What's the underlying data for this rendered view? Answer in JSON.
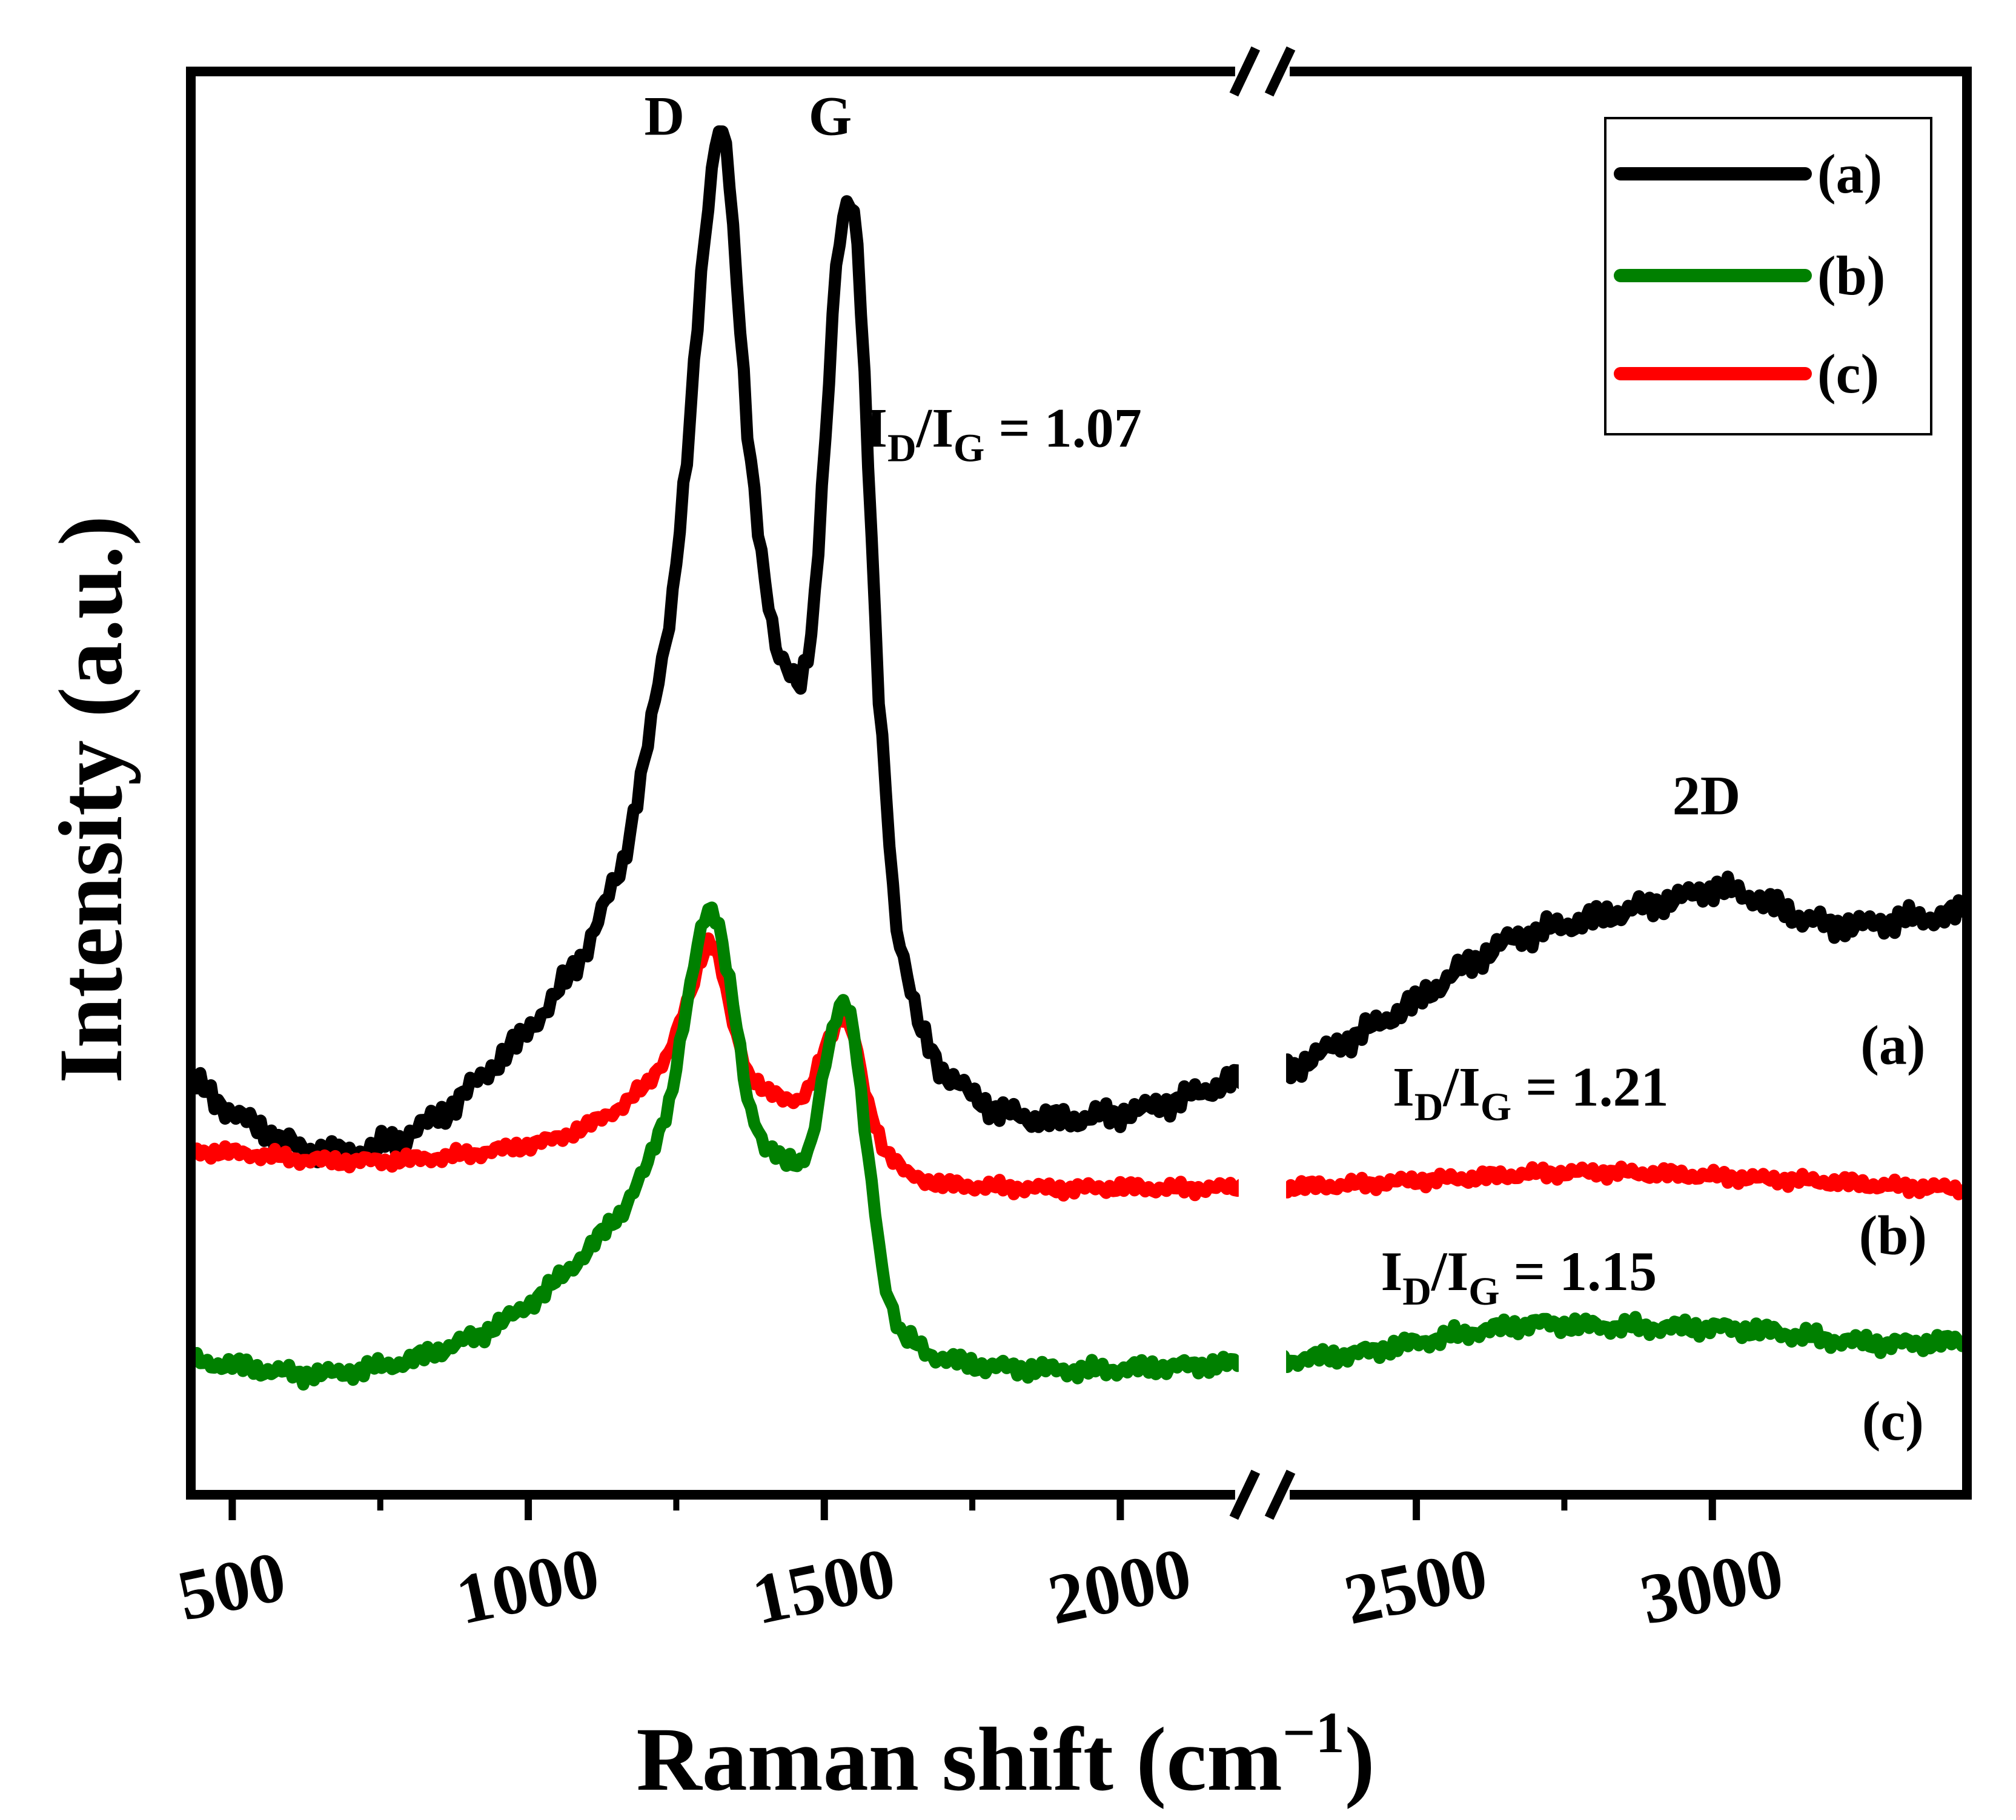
{
  "chart_data": {
    "type": "line",
    "xlabel": "Raman shift (cm",
    "xlabel_sup": "−1",
    "xlabel_close": ")",
    "ylabel": "Intensity (a.u.)",
    "xlim": [
      430,
      3430
    ],
    "axis_break": [
      2200,
      2280
    ],
    "x_ticks": [
      {
        "value": 500,
        "label": "500"
      },
      {
        "value": 1000,
        "label": "1000"
      },
      {
        "value": 1500,
        "label": "1500"
      },
      {
        "value": 2000,
        "label": "2000"
      },
      {
        "value": 2500,
        "label": "2500"
      },
      {
        "value": 3000,
        "label": "3000"
      }
    ],
    "x_minor_ticks": [
      750,
      1250,
      1750,
      2750
    ],
    "ylim": [
      0,
      100
    ],
    "series": [
      {
        "name": "(a)",
        "color": "#000000",
        "points": [
          [
            440,
            29
          ],
          [
            500,
            27
          ],
          [
            560,
            25.5
          ],
          [
            620,
            24.3
          ],
          [
            680,
            24
          ],
          [
            740,
            24.4
          ],
          [
            800,
            25.5
          ],
          [
            860,
            27
          ],
          [
            920,
            29.5
          ],
          [
            980,
            32
          ],
          [
            1040,
            35
          ],
          [
            1100,
            39
          ],
          [
            1160,
            45
          ],
          [
            1200,
            53
          ],
          [
            1240,
            63
          ],
          [
            1270,
            75
          ],
          [
            1290,
            86
          ],
          [
            1305,
            93
          ],
          [
            1320,
            98.5
          ],
          [
            1335,
            97
          ],
          [
            1350,
            88
          ],
          [
            1370,
            76
          ],
          [
            1395,
            67
          ],
          [
            1420,
            60
          ],
          [
            1440,
            58.5
          ],
          [
            1460,
            58
          ],
          [
            1480,
            62
          ],
          [
            1500,
            74
          ],
          [
            1520,
            88
          ],
          [
            1540,
            93.5
          ],
          [
            1555,
            91
          ],
          [
            1570,
            78
          ],
          [
            1590,
            58
          ],
          [
            1620,
            41
          ],
          [
            1660,
            33
          ],
          [
            1700,
            30
          ],
          [
            1750,
            28.2
          ],
          [
            1800,
            27
          ],
          [
            1860,
            26.5
          ],
          [
            1920,
            26.5
          ],
          [
            1980,
            26.8
          ],
          [
            2050,
            27.3
          ],
          [
            2120,
            28.2
          ],
          [
            2200,
            29.5
          ],
          [
            2280,
            30
          ],
          [
            2350,
            31.5
          ],
          [
            2420,
            33
          ],
          [
            2500,
            35
          ],
          [
            2580,
            37.5
          ],
          [
            2660,
            39.5
          ],
          [
            2750,
            40.5
          ],
          [
            2850,
            41.5
          ],
          [
            2950,
            42.5
          ],
          [
            3000,
            43.2
          ],
          [
            3050,
            42.8
          ],
          [
            3100,
            42
          ],
          [
            3150,
            41
          ],
          [
            3200,
            40.5
          ],
          [
            3250,
            40.5
          ],
          [
            3300,
            40.8
          ],
          [
            3350,
            41
          ],
          [
            3400,
            41.2
          ],
          [
            3425,
            41.5
          ]
        ]
      },
      {
        "name": "(b)",
        "color": "#008000",
        "points": [
          [
            440,
            9
          ],
          [
            500,
            8.8
          ],
          [
            560,
            8.4
          ],
          [
            620,
            8.1
          ],
          [
            680,
            8.2
          ],
          [
            740,
            8.6
          ],
          [
            800,
            9.1
          ],
          [
            860,
            10
          ],
          [
            920,
            11
          ],
          [
            980,
            12.5
          ],
          [
            1040,
            14.5
          ],
          [
            1100,
            17
          ],
          [
            1160,
            20
          ],
          [
            1200,
            23
          ],
          [
            1240,
            28
          ],
          [
            1270,
            35
          ],
          [
            1290,
            40
          ],
          [
            1305,
            42
          ],
          [
            1320,
            41
          ],
          [
            1345,
            35
          ],
          [
            1370,
            28
          ],
          [
            1400,
            24.5
          ],
          [
            1430,
            23.5
          ],
          [
            1460,
            23.5
          ],
          [
            1480,
            25
          ],
          [
            1500,
            30
          ],
          [
            1520,
            34
          ],
          [
            1535,
            35.5
          ],
          [
            1550,
            33
          ],
          [
            1570,
            25
          ],
          [
            1600,
            15
          ],
          [
            1630,
            11
          ],
          [
            1680,
            9.5
          ],
          [
            1750,
            8.8
          ],
          [
            1850,
            8.5
          ],
          [
            1950,
            8.4
          ],
          [
            2050,
            8.6
          ],
          [
            2150,
            8.8
          ],
          [
            2200,
            8.9
          ],
          [
            2280,
            9.1
          ],
          [
            2400,
            9.6
          ],
          [
            2500,
            10.4
          ],
          [
            2600,
            11.2
          ],
          [
            2700,
            11.8
          ],
          [
            2800,
            11.6
          ],
          [
            2900,
            11.5
          ],
          [
            3000,
            11.5
          ],
          [
            3100,
            11.2
          ],
          [
            3200,
            10.6
          ],
          [
            3300,
            10.3
          ],
          [
            3425,
            10.5
          ]
        ]
      },
      {
        "name": "(c)",
        "color": "#ff0000",
        "points": [
          [
            440,
            24.2
          ],
          [
            500,
            24.1
          ],
          [
            560,
            23.9
          ],
          [
            620,
            23.6
          ],
          [
            680,
            23.5
          ],
          [
            740,
            23.5
          ],
          [
            800,
            23.6
          ],
          [
            860,
            23.8
          ],
          [
            920,
            24.1
          ],
          [
            980,
            24.5
          ],
          [
            1040,
            25
          ],
          [
            1100,
            26
          ],
          [
            1160,
            27.5
          ],
          [
            1200,
            29
          ],
          [
            1240,
            31.5
          ],
          [
            1270,
            35
          ],
          [
            1290,
            38
          ],
          [
            1305,
            39.5
          ],
          [
            1320,
            38.5
          ],
          [
            1345,
            33.5
          ],
          [
            1370,
            30
          ],
          [
            1400,
            28.5
          ],
          [
            1430,
            28
          ],
          [
            1460,
            28
          ],
          [
            1480,
            29
          ],
          [
            1500,
            31.5
          ],
          [
            1520,
            33.5
          ],
          [
            1535,
            34
          ],
          [
            1550,
            32.5
          ],
          [
            1570,
            28
          ],
          [
            1600,
            24.5
          ],
          [
            1640,
            22.5
          ],
          [
            1700,
            21.8
          ],
          [
            1800,
            21.6
          ],
          [
            1900,
            21.5
          ],
          [
            2000,
            21.6
          ],
          [
            2100,
            21.5
          ],
          [
            2200,
            21.6
          ],
          [
            2280,
            21.6
          ],
          [
            2400,
            21.8
          ],
          [
            2500,
            22.1
          ],
          [
            2600,
            22.3
          ],
          [
            2700,
            22.6
          ],
          [
            2800,
            22.7
          ],
          [
            2900,
            22.6
          ],
          [
            3000,
            22.4
          ],
          [
            3100,
            22.2
          ],
          [
            3200,
            22
          ],
          [
            3300,
            21.7
          ],
          [
            3425,
            21.5
          ]
        ]
      }
    ],
    "annotations": [
      {
        "id": "peak-D",
        "text": "D",
        "x": 1230,
        "y": 97.5
      },
      {
        "id": "peak-G",
        "text": "G",
        "x": 1510,
        "y": 97.5
      },
      {
        "id": "peak-2D",
        "text": "2D",
        "x": 2990,
        "y": 48.5
      },
      {
        "id": "trace-a",
        "text": "(a)",
        "x": 3305,
        "y": 30.5
      },
      {
        "id": "trace-b",
        "text": "(b)",
        "x": 3305,
        "y": 16.8
      },
      {
        "id": "trace-c",
        "text": "(c)",
        "x": 3305,
        "y": 3.4
      }
    ],
    "ratios": [
      {
        "id": "ratio-a",
        "prefix": "I",
        "sub1": "D",
        "mid": "/I",
        "sub2": "G",
        "value": " = 1.07",
        "x": 1570,
        "y": 75
      },
      {
        "id": "ratio-c",
        "prefix": "I",
        "sub1": "D",
        "mid": "/I",
        "sub2": "G",
        "value": " = 1.21",
        "x": 2460,
        "y": 27.5
      },
      {
        "id": "ratio-b",
        "prefix": "I",
        "sub1": "D",
        "mid": "/I",
        "sub2": "G",
        "value": " = 1.15",
        "x": 2440,
        "y": 14.2
      }
    ],
    "legend_position": "top-right"
  }
}
